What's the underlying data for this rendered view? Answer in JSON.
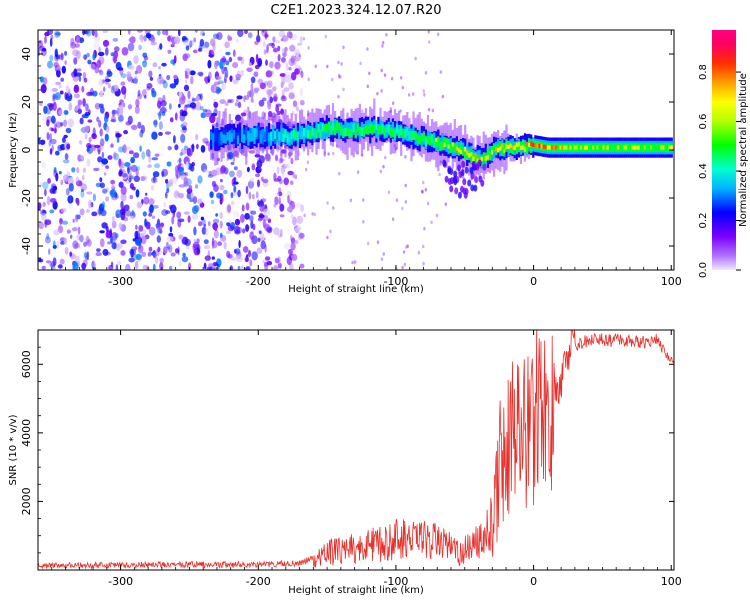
{
  "figure": {
    "title": "C2E1.2023.324.12.07.R20"
  },
  "colors": {
    "snr_line": "#e8302b",
    "spectrogram_low": "#7a00ff",
    "spectrogram_mid": "#00e0ff",
    "spectrogram_high": "#ff0040"
  },
  "chart_data": [
    {
      "type": "heatmap",
      "title": "C2E1.2023.324.12.07.R20",
      "xlabel": "Height of straight line (km)",
      "ylabel": "Frequency (Hz)",
      "xlim": [
        -360,
        102
      ],
      "ylim": [
        -50,
        50
      ],
      "x_ticks": [
        -300,
        -200,
        -100,
        0,
        100
      ],
      "y_ticks": [
        -40,
        -20,
        0,
        20,
        40
      ],
      "colorbar": {
        "label": "Normalized spectral amplitude",
        "range": [
          0,
          0.97
        ],
        "ticks": [
          "0.0",
          "0.2",
          "0.4",
          "0.6",
          "0.8"
        ],
        "colormap": "rainbow"
      },
      "signal_ridge": {
        "x": [
          -235,
          -200,
          -170,
          -150,
          -130,
          -110,
          -90,
          -70,
          -55,
          -45,
          -38,
          -30,
          -20,
          -10,
          0,
          10,
          30,
          60,
          100
        ],
        "frequency": [
          5,
          6,
          6,
          9,
          8,
          9,
          6,
          3,
          1,
          -3,
          -4,
          0,
          1,
          1,
          2,
          1,
          1,
          1,
          1
        ],
        "peak_amplitude": [
          0.3,
          0.35,
          0.45,
          0.55,
          0.55,
          0.5,
          0.5,
          0.6,
          0.7,
          0.8,
          0.7,
          0.75,
          0.8,
          0.8,
          0.85,
          0.8,
          0.65,
          0.65,
          0.65
        ]
      },
      "noise_region_x": [
        -360,
        -168
      ],
      "grid": false
    },
    {
      "type": "line",
      "xlabel": "Height of straight line (km)",
      "ylabel": "SNR (10 * v/v)",
      "xlim": [
        -360,
        102
      ],
      "ylim": [
        0,
        7000
      ],
      "x_ticks": [
        -300,
        -200,
        -100,
        0,
        100
      ],
      "y_ticks": [
        2000,
        4000,
        6000
      ],
      "series": [
        {
          "x": [
            -360,
            -300,
            -250,
            -200,
            -170,
            -150,
            -130,
            -110,
            -90,
            -70,
            -55,
            -45,
            -35,
            -28,
            -25,
            -20,
            -15,
            -10,
            -5,
            0,
            5,
            10,
            15,
            20,
            25,
            30,
            40,
            60,
            80,
            90,
            95,
            100,
            102
          ],
          "values": [
            120,
            140,
            160,
            150,
            200,
            500,
            650,
            800,
            1000,
            850,
            500,
            650,
            1000,
            1800,
            3000,
            3900,
            3800,
            4200,
            4000,
            4300,
            4700,
            4500,
            5100,
            5600,
            6300,
            6500,
            6700,
            6700,
            6650,
            6700,
            6400,
            6200,
            6000
          ]
        }
      ],
      "grid": false
    }
  ]
}
